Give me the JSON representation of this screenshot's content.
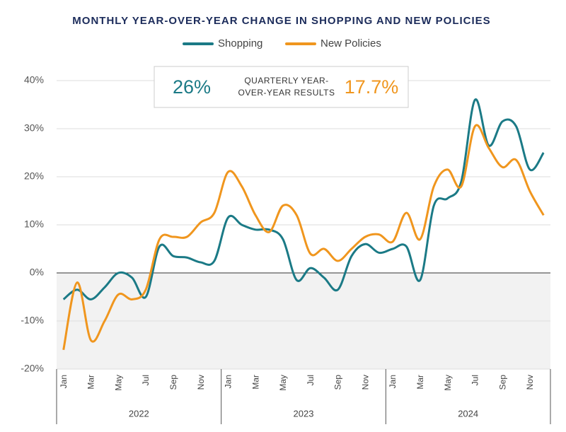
{
  "chart_data": {
    "type": "line",
    "title": "MONTHLY YEAR-OVER-YEAR CHANGE IN SHOPPING AND NEW POLICIES",
    "categories": [
      "Jan",
      null,
      "Mar",
      null,
      "May",
      null,
      "Jul",
      null,
      "Sep",
      null,
      "Nov",
      null,
      "Jan",
      null,
      "Mar",
      null,
      "May",
      null,
      "Jul",
      null,
      "Sep",
      null,
      "Nov",
      null,
      "Jan",
      null,
      "Mar",
      null,
      "May",
      null,
      "Jul",
      null,
      "Sep",
      null,
      "Nov",
      null
    ],
    "x_groups": [
      "2022",
      "2023",
      "2024"
    ],
    "series": [
      {
        "name": "Shopping",
        "color": "#1b7a86",
        "values": [
          -5.5,
          -3.5,
          -5.5,
          -3,
          0,
          -1,
          -5,
          5.5,
          3.5,
          3.2,
          2.2,
          2.5,
          11.5,
          10,
          9,
          9,
          7,
          -1.5,
          1,
          -1,
          -3.5,
          3.5,
          6,
          4.2,
          5,
          5.5,
          -1.5,
          14,
          15.5,
          19,
          36,
          26.5,
          31.5,
          30.5,
          21.5,
          25
        ]
      },
      {
        "name": "New Policies",
        "color": "#f0961e",
        "values": [
          -16,
          -2,
          -14,
          -10,
          -4.5,
          -5.5,
          -3.5,
          7,
          7.5,
          7.5,
          10.5,
          12.5,
          21,
          18,
          12,
          8.5,
          14,
          12,
          4,
          5,
          2.5,
          5,
          7.5,
          8,
          6.5,
          12.5,
          7,
          18,
          21.5,
          18,
          30.5,
          26,
          22,
          23.5,
          17,
          12
        ]
      }
    ],
    "ylim": [
      -20,
      40
    ],
    "yticks": [
      {
        "value": -20,
        "label": "-20%"
      },
      {
        "value": -10,
        "label": "-10%"
      },
      {
        "value": 0,
        "label": "0%"
      },
      {
        "value": 10,
        "label": "10%"
      },
      {
        "value": 20,
        "label": "20%"
      },
      {
        "value": 30,
        "label": "30%"
      },
      {
        "value": 40,
        "label": "40%"
      }
    ],
    "grid": true,
    "annotation": {
      "left": "26%",
      "lines": [
        "QUARTERLY YEAR-",
        "OVER-YEAR RESULTS"
      ],
      "right": "17.7%"
    }
  }
}
